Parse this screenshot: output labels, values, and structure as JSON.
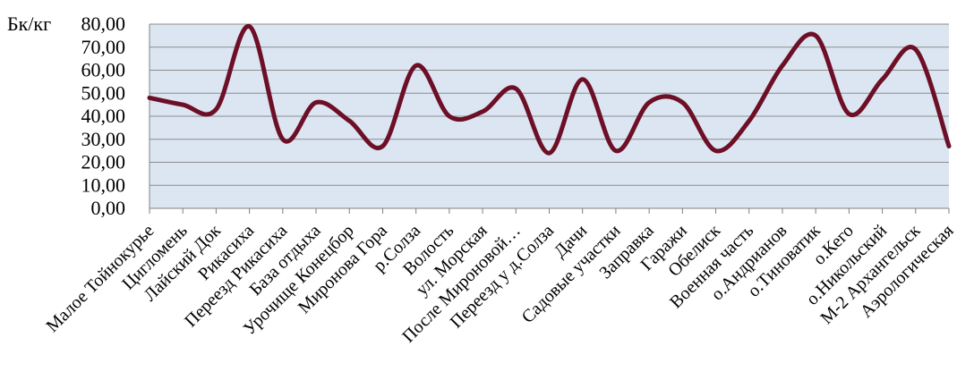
{
  "chart_data": {
    "type": "line",
    "ylabel": "Бк/кг",
    "ylim": [
      0,
      80
    ],
    "yticks": [
      "0,00",
      "10,00",
      "20,00",
      "30,00",
      "40,00",
      "50,00",
      "60,00",
      "70,00",
      "80,00"
    ],
    "grid": true,
    "legend": "none",
    "colors": {
      "line": "#6d0f26",
      "plot_bg": "#dce6f2",
      "grid": "#8c8c8c"
    },
    "categories": [
      "Малое Тойнокурье",
      "Цигломень",
      "Лайский Док",
      "Рикасиха",
      "Переезд Рикасиха",
      "База отдыха",
      "Урочище Конецбор",
      "Миронова Гора",
      "р.Солза",
      "Волость",
      "ул. Морская",
      "После Мироновой…",
      "Переезд у д.Солза",
      "Дачи",
      "Садовые участки",
      "Заправка",
      "Гаражи",
      "Обелиск",
      "Военная часть",
      "о.Андрианов",
      "о.Тиноватик",
      "о.Кего",
      "о.Никольский",
      "М-2 Архангельск",
      "Аэрологическая"
    ],
    "values": [
      48,
      45,
      43,
      79,
      30,
      46,
      38,
      27,
      62,
      40,
      42,
      52,
      24,
      56,
      25,
      46,
      46,
      25,
      38,
      62,
      75,
      41,
      56,
      69,
      27
    ]
  }
}
